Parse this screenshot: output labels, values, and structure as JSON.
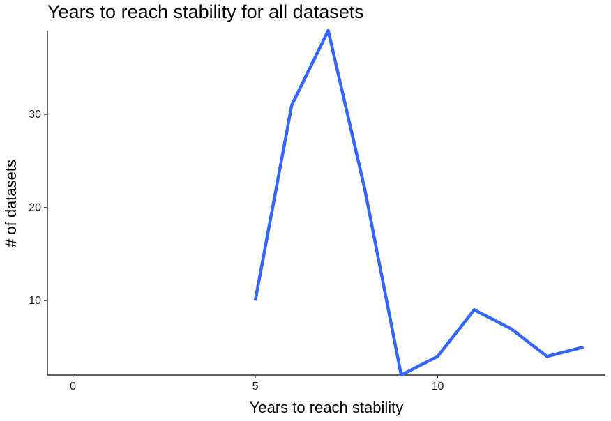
{
  "chart_data": {
    "type": "line",
    "title": "Years to reach stability for all datasets",
    "xlabel": "Years to reach stability",
    "ylabel": "# of datasets",
    "xlim": [
      -0.7,
      14.6
    ],
    "ylim": [
      2,
      39
    ],
    "xticks": [
      0,
      5,
      10
    ],
    "yticks": [
      10,
      20,
      30
    ],
    "grid": false,
    "line_color": "#3366ff",
    "series": [
      {
        "x": [
          5,
          6,
          7,
          8,
          9,
          10,
          11,
          12,
          13,
          14
        ],
        "values": [
          10,
          31,
          39,
          22,
          2,
          4,
          9,
          7,
          4,
          5
        ]
      }
    ]
  }
}
